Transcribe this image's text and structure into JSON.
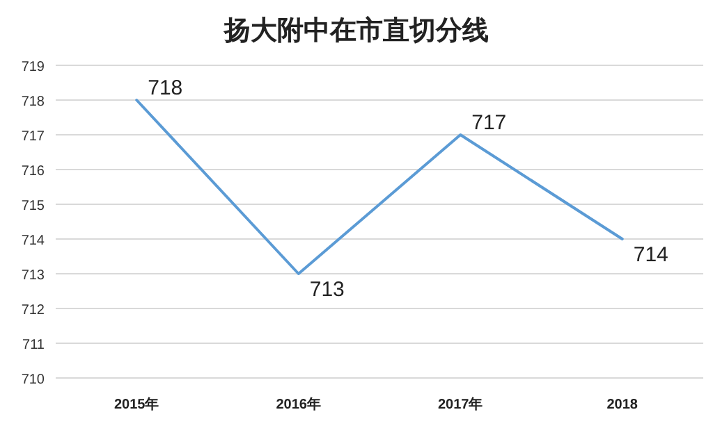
{
  "chart_data": {
    "type": "line",
    "title": "扬大附中在市直切分线",
    "categories": [
      "2015年",
      "2016年",
      "2017年",
      "2018"
    ],
    "values": [
      718,
      713,
      717,
      714
    ],
    "color": "#5b9bd5",
    "ylim": [
      710,
      719
    ],
    "yticks": [
      710,
      711,
      712,
      713,
      714,
      715,
      716,
      717,
      718,
      719
    ],
    "grid": "y",
    "data_labels": true
  }
}
